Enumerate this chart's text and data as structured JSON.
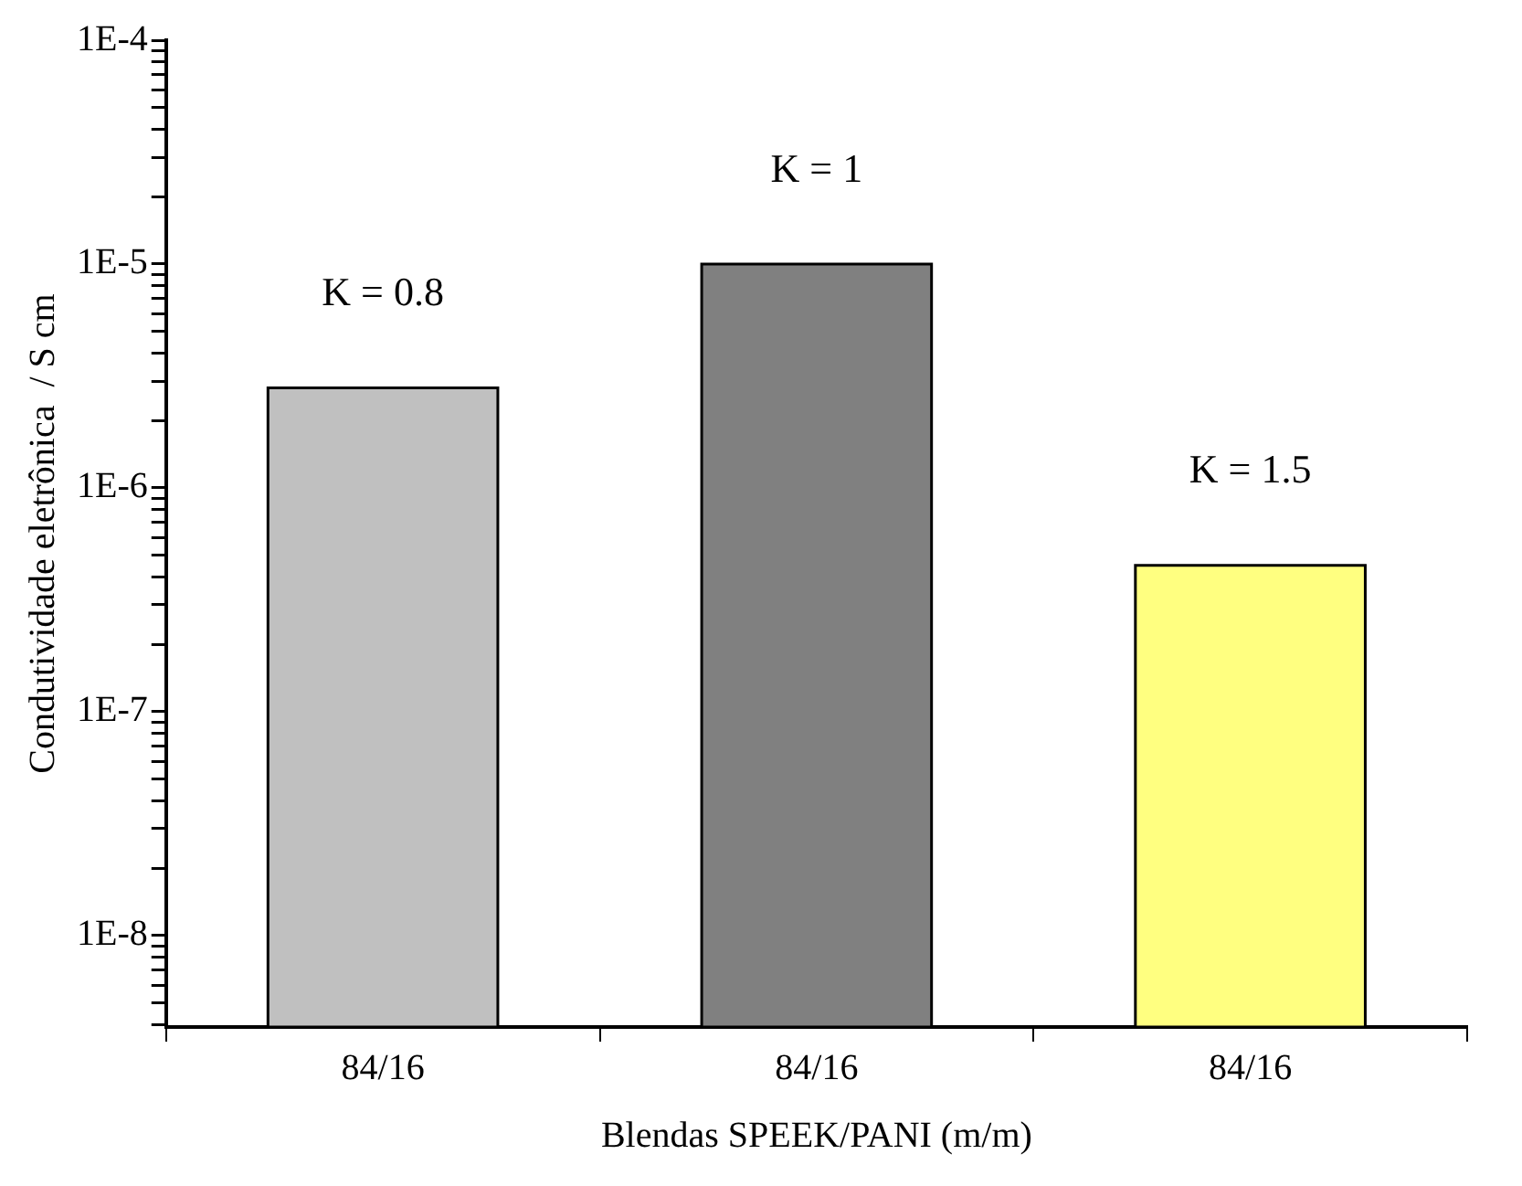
{
  "chart_data": {
    "type": "bar",
    "xlabel": "Blendas SPEEK/PANI (m/m)",
    "ylabel": "Condutividade eletrônica  / S cm",
    "categories": [
      "84/16",
      "84/16",
      "84/16"
    ],
    "values": [
      2.8e-06,
      1e-05,
      4.5e-07
    ],
    "colors": [
      "#c0c0c0",
      "#808080",
      "#ffff80"
    ],
    "annotations": [
      "K = 0.8",
      "K = 1",
      "K = 1.5"
    ],
    "log": "y",
    "grid": false,
    "legend": false,
    "ylim": [
      3.9e-09,
      0.0001
    ],
    "yticks": [
      {
        "value": 4e-09,
        "label": null
      },
      {
        "value": 5e-09,
        "label": null
      },
      {
        "value": 6e-09,
        "label": null
      },
      {
        "value": 7e-09,
        "label": null
      },
      {
        "value": 8e-09,
        "label": null
      },
      {
        "value": 9e-09,
        "label": null
      },
      {
        "value": 1e-08,
        "label": "1E-8"
      },
      {
        "value": 2e-08,
        "label": null
      },
      {
        "value": 3e-08,
        "label": null
      },
      {
        "value": 4e-08,
        "label": null
      },
      {
        "value": 5e-08,
        "label": null
      },
      {
        "value": 6e-08,
        "label": null
      },
      {
        "value": 7e-08,
        "label": null
      },
      {
        "value": 8e-08,
        "label": null
      },
      {
        "value": 9e-08,
        "label": null
      },
      {
        "value": 1e-07,
        "label": "1E-7"
      },
      {
        "value": 2e-07,
        "label": null
      },
      {
        "value": 3e-07,
        "label": null
      },
      {
        "value": 4e-07,
        "label": null
      },
      {
        "value": 5e-07,
        "label": null
      },
      {
        "value": 6e-07,
        "label": null
      },
      {
        "value": 7e-07,
        "label": null
      },
      {
        "value": 8e-07,
        "label": null
      },
      {
        "value": 9e-07,
        "label": null
      },
      {
        "value": 1e-06,
        "label": "1E-6"
      },
      {
        "value": 2e-06,
        "label": null
      },
      {
        "value": 3e-06,
        "label": null
      },
      {
        "value": 4e-06,
        "label": null
      },
      {
        "value": 5e-06,
        "label": null
      },
      {
        "value": 6e-06,
        "label": null
      },
      {
        "value": 7e-06,
        "label": null
      },
      {
        "value": 8e-06,
        "label": null
      },
      {
        "value": 9e-06,
        "label": null
      },
      {
        "value": 1e-05,
        "label": "1E-5"
      },
      {
        "value": 2e-05,
        "label": null
      },
      {
        "value": 3e-05,
        "label": null
      },
      {
        "value": 4e-05,
        "label": null
      },
      {
        "value": 5e-05,
        "label": null
      },
      {
        "value": 6e-05,
        "label": null
      },
      {
        "value": 7e-05,
        "label": null
      },
      {
        "value": 8e-05,
        "label": null
      },
      {
        "value": 9e-05,
        "label": null
      },
      {
        "value": 0.0001,
        "label": "1E-4"
      }
    ]
  }
}
